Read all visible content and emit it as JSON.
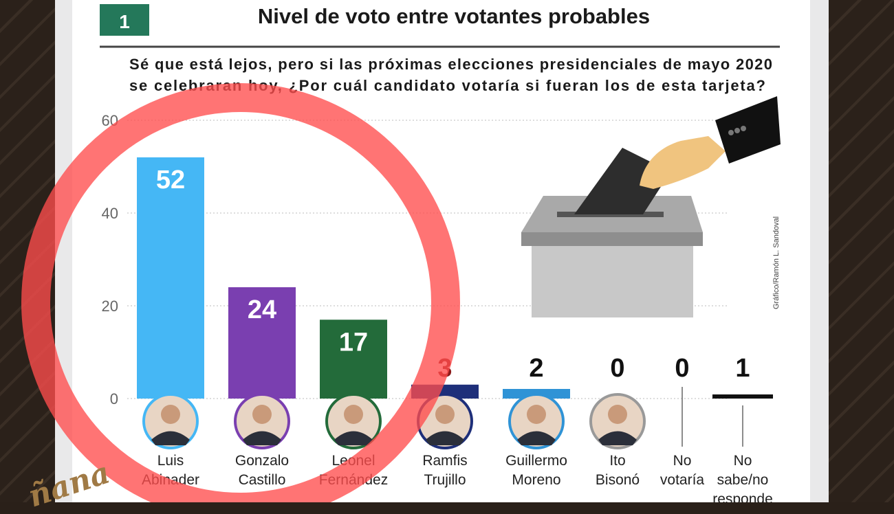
{
  "header": {
    "badge": "1",
    "title": "Nivel de voto entre votantes probables"
  },
  "question": {
    "line1": "Sé que está lejos, pero si las próximas elecciones presidenciales de mayo 2020",
    "line2": "se celebraran hoy, ¿Por cuál candidato votaría si fueran los de esta tarjeta?"
  },
  "credit": "Gráfico/Ramón L. Sandoval",
  "logo_text": "ñana",
  "chart_data": {
    "type": "bar",
    "title": "Nivel de voto entre votantes probables",
    "ylim": [
      0,
      60
    ],
    "yticks": [
      "0",
      "20",
      "40",
      "60"
    ],
    "grid": true,
    "categories": [
      [
        "Luis",
        "Abinader"
      ],
      [
        "Gonzalo",
        "Castillo"
      ],
      [
        "Leonel",
        "Fernández"
      ],
      [
        "Ramfis",
        "Trujillo"
      ],
      [
        "Guillermo",
        "Moreno"
      ],
      [
        "Ito",
        "Bisonó"
      ],
      [
        "No",
        "votaría"
      ],
      [
        "No",
        "sabe/no",
        "responde"
      ]
    ],
    "values": [
      52,
      24,
      17,
      3,
      2,
      0,
      0,
      1
    ],
    "colors": [
      "#45b7f5",
      "#7a3fb0",
      "#236b3a",
      "#1e2f7a",
      "#2f93d6",
      "#888888",
      "#333333",
      "#111111"
    ],
    "has_photo": [
      true,
      true,
      true,
      true,
      true,
      true,
      false,
      false
    ]
  },
  "overlay": {
    "circle_color": "#ff4d4d"
  },
  "colors": {
    "badge": "#24785a",
    "text": "#1a1a1a"
  }
}
